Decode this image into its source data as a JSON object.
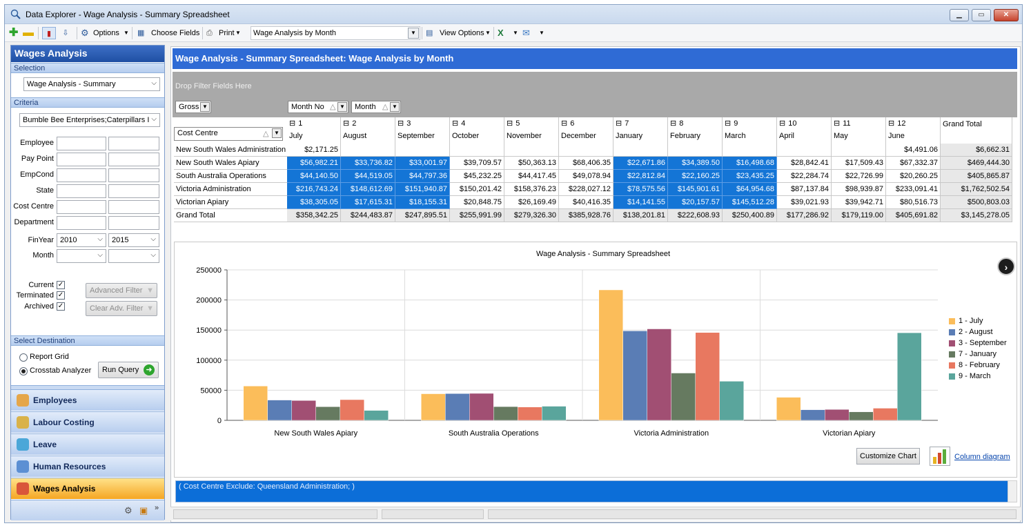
{
  "window": {
    "title": "Data Explorer - Wage Analysis - Summary Spreadsheet"
  },
  "toolbar": {
    "options_label": "Options",
    "choose_fields_label": "Choose Fields",
    "print_label": "Print",
    "view_selector_value": "Wage Analysis by Month",
    "view_options_label": "View Options"
  },
  "left": {
    "title": "Wages Analysis",
    "selection_label": "Selection",
    "selection_value": "Wage Analysis - Summary",
    "criteria_label": "Criteria",
    "criteria_value": "Bumble Bee Enterprises;Caterpillars I",
    "fields": [
      "Employee",
      "Pay Point",
      "EmpCond",
      "State",
      "Cost Centre",
      "Department"
    ],
    "finyear_label": "FinYear",
    "finyear_from": "2010",
    "finyear_to": "2015",
    "month_label": "Month",
    "current_label": "Current",
    "terminated_label": "Terminated",
    "archived_label": "Archived",
    "advanced_filter_label": "Advanced Filter",
    "clear_adv_filter_label": "Clear Adv. Filter",
    "destination_label": "Select Destination",
    "report_grid_label": "Report Grid",
    "crosstab_label": "Crosstab Analyzer",
    "run_query_label": "Run Query",
    "nav": [
      {
        "label": "Employees",
        "color": "#e5a64a"
      },
      {
        "label": "Labour Costing",
        "color": "#d9b24a"
      },
      {
        "label": "Leave",
        "color": "#4ba7d8"
      },
      {
        "label": "Human Resources",
        "color": "#5c8fd3"
      },
      {
        "label": "Wages Analysis",
        "color": "#d9563a"
      }
    ]
  },
  "main": {
    "title": "Wage Analysis - Summary Spreadsheet: Wage Analysis by Month",
    "drop_filter_text": "Drop Filter Fields Here",
    "data_field": "Gross",
    "col_fields": [
      "Month No",
      "Month"
    ],
    "row_field": "Cost Centre",
    "grand_total_label": "Grand Total",
    "columns": [
      {
        "no": "1",
        "month": "July"
      },
      {
        "no": "2",
        "month": "August"
      },
      {
        "no": "3",
        "month": "September"
      },
      {
        "no": "4",
        "month": "October"
      },
      {
        "no": "5",
        "month": "November"
      },
      {
        "no": "6",
        "month": "December"
      },
      {
        "no": "7",
        "month": "January"
      },
      {
        "no": "8",
        "month": "February"
      },
      {
        "no": "9",
        "month": "March"
      },
      {
        "no": "10",
        "month": "April"
      },
      {
        "no": "11",
        "month": "May"
      },
      {
        "no": "12",
        "month": "June"
      }
    ],
    "rows": [
      {
        "name": "New South Wales Administration",
        "values": [
          "$2,171.25",
          "",
          "",
          "",
          "",
          "",
          "",
          "",
          "",
          "",
          "",
          "$4,491.06"
        ],
        "total": "$6,662.31"
      },
      {
        "name": "New South Wales Apiary",
        "values": [
          "$56,982.21",
          "$33,736.82",
          "$33,001.97",
          "$39,709.57",
          "$50,363.13",
          "$68,406.35",
          "$22,671.86",
          "$34,389.50",
          "$16,498.68",
          "$28,842.41",
          "$17,509.43",
          "$67,332.37"
        ],
        "total": "$469,444.30"
      },
      {
        "name": "South Australia Operations",
        "values": [
          "$44,140.50",
          "$44,519.05",
          "$44,797.36",
          "$45,232.25",
          "$44,417.45",
          "$49,078.94",
          "$22,812.84",
          "$22,160.25",
          "$23,435.25",
          "$22,284.74",
          "$22,726.99",
          "$20,260.25"
        ],
        "total": "$405,865.87"
      },
      {
        "name": "Victoria Administration",
        "values": [
          "$216,743.24",
          "$148,612.69",
          "$151,940.87",
          "$150,201.42",
          "$158,376.23",
          "$228,027.12",
          "$78,575.56",
          "$145,901.61",
          "$64,954.68",
          "$87,137.84",
          "$98,939.87",
          "$233,091.41"
        ],
        "total": "$1,762,502.54"
      },
      {
        "name": "Victorian Apiary",
        "values": [
          "$38,305.05",
          "$17,615.31",
          "$18,155.31",
          "$20,848.75",
          "$26,169.49",
          "$40,416.35",
          "$14,141.55",
          "$20,157.57",
          "$145,512.28",
          "$39,021.93",
          "$39,942.71",
          "$80,516.73"
        ],
        "total": "$500,803.03"
      }
    ],
    "grand_row": {
      "name": "Grand Total",
      "values": [
        "$358,342.25",
        "$244,483.87",
        "$247,895.51",
        "$255,991.99",
        "$279,326.30",
        "$385,928.76",
        "$138,201.81",
        "$222,608.93",
        "$250,400.89",
        "$177,286.92",
        "$179,119.00",
        "$405,691.82"
      ],
      "total": "$3,145,278.05"
    },
    "customize_chart_label": "Customize Chart",
    "column_diagram_label": "Column diagram",
    "filter_expression": "( Cost Centre Exclude: Queensland Administration;  )"
  },
  "chart_data": {
    "type": "bar",
    "title": "Wage Analysis - Summary Spreadsheet",
    "categories": [
      "New South Wales Apiary",
      "South Australia Operations",
      "Victoria Administration",
      "Victorian Apiary"
    ],
    "ylim": [
      0,
      250000
    ],
    "yticks": [
      "250000",
      "200000",
      "150000",
      "100000",
      "50000",
      "0"
    ],
    "grid": true,
    "legend_position": "right",
    "series": [
      {
        "name": "1 - July",
        "color": "#fbbd5a",
        "values": [
          56982.21,
          44140.5,
          216743.24,
          38305.05
        ]
      },
      {
        "name": "2 - August",
        "color": "#5a7db5",
        "values": [
          33736.82,
          44519.05,
          148612.69,
          17615.31
        ]
      },
      {
        "name": "3 - September",
        "color": "#a14f73",
        "values": [
          33001.97,
          44797.36,
          151940.87,
          18155.31
        ]
      },
      {
        "name": "7 - January",
        "color": "#667a60",
        "values": [
          22671.86,
          22812.84,
          78575.56,
          14141.55
        ]
      },
      {
        "name": "8 - February",
        "color": "#e87860",
        "values": [
          34389.5,
          22160.25,
          145901.61,
          20157.57
        ]
      },
      {
        "name": "9 - March",
        "color": "#5aa59c",
        "values": [
          16498.68,
          23435.25,
          64954.68,
          145512.28
        ]
      }
    ]
  }
}
